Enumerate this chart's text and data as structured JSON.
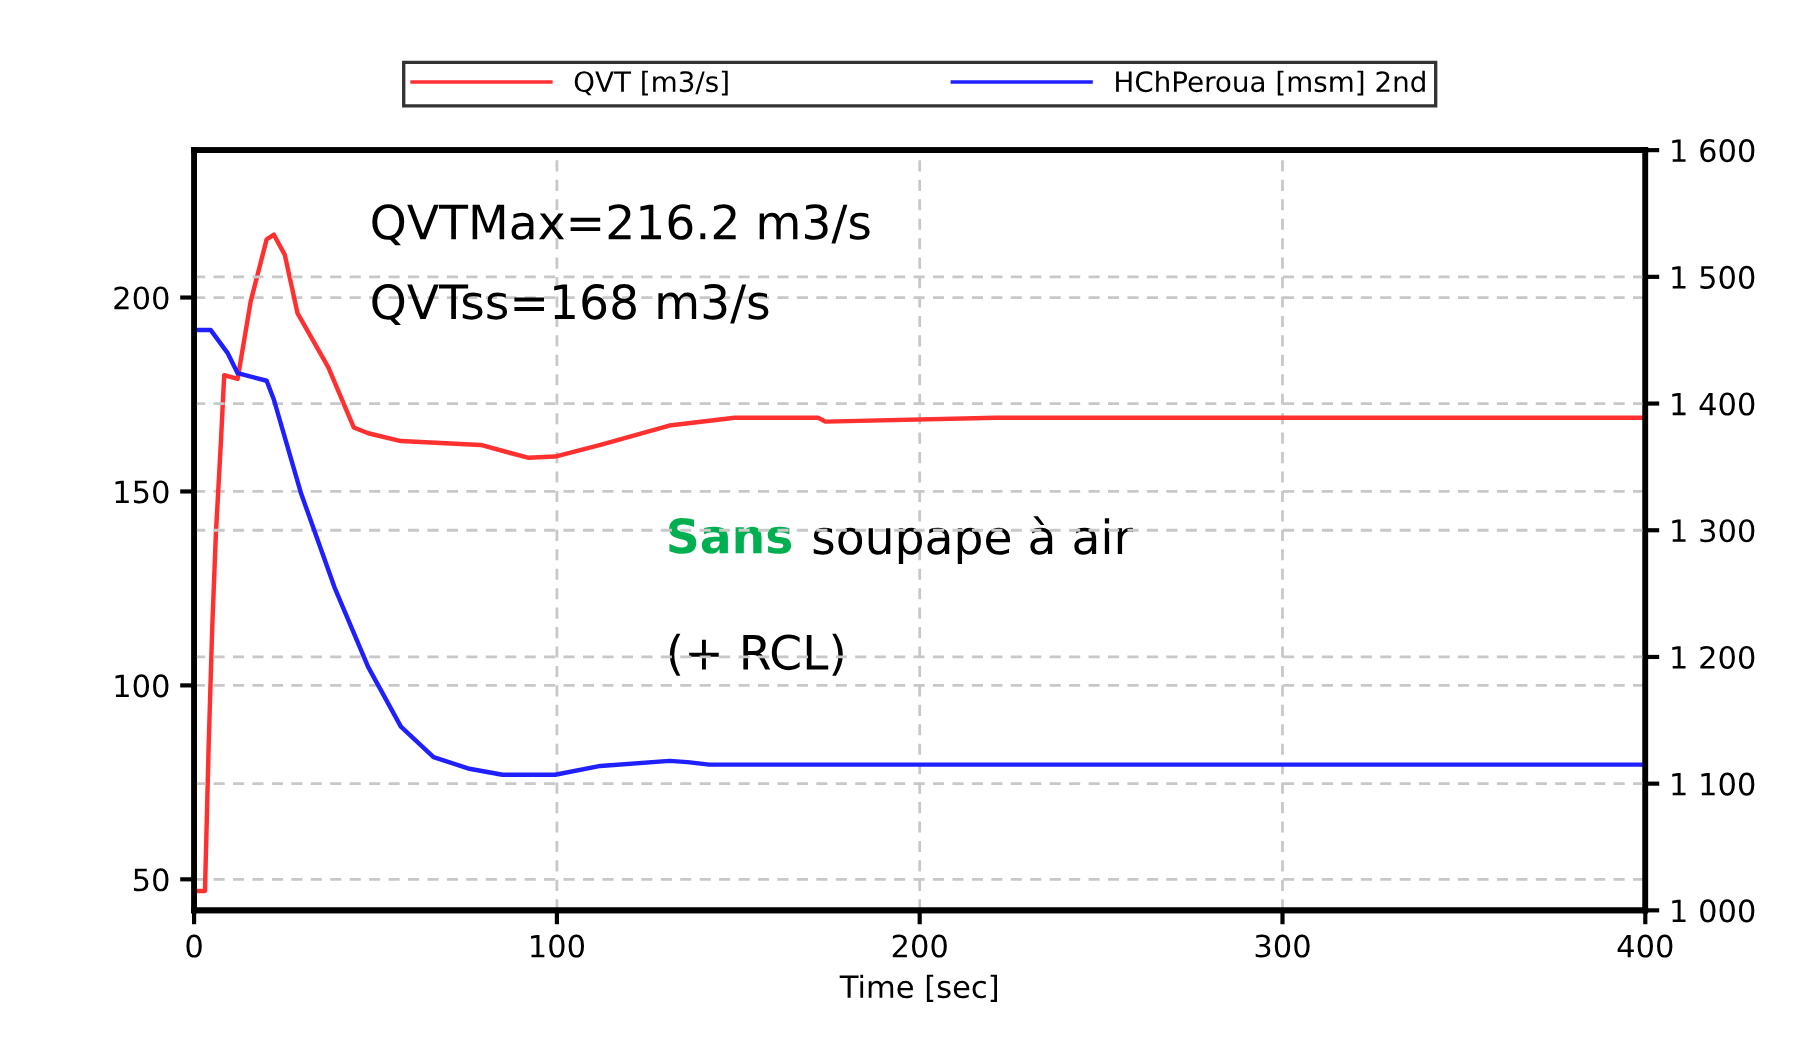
{
  "chart_data": {
    "type": "line",
    "xlabel": "Time [sec]",
    "xlim": [
      0,
      400
    ],
    "xticks": [
      0,
      100,
      200,
      300,
      400
    ],
    "ylim": [
      42,
      238
    ],
    "yticks": [
      50,
      100,
      150,
      200
    ],
    "y2lim": [
      1000,
      1600
    ],
    "y2ticks": [
      {
        "value": 1000,
        "label": "1 000"
      },
      {
        "value": 1100,
        "label": "1 100"
      },
      {
        "value": 1200,
        "label": "1 200"
      },
      {
        "value": 1300,
        "label": "1 300"
      },
      {
        "value": 1400,
        "label": "1 400"
      },
      {
        "value": 1500,
        "label": "1 500"
      },
      {
        "value": 1600,
        "label": "1 600"
      }
    ],
    "grid": true,
    "legend": "top",
    "line_style": "solid",
    "annotations": [
      "QVTMax=216.2 m3/s",
      "QVTss=168 m3/s",
      "Sans soupape à air",
      "(+ RCL)"
    ],
    "series": [
      {
        "name": "QVT [m3/s]",
        "color": "#ff3030",
        "x": [
          0,
          3,
          4,
          5,
          6,
          7.4,
          8.3,
          12,
          15.6,
          20,
          22,
          25,
          28.5,
          37,
          44,
          48,
          57,
          79,
          92,
          99.5,
          112,
          131,
          149,
          172,
          174,
          221,
          400
        ],
        "values": [
          47,
          47,
          84,
          115,
          139,
          163,
          180,
          179,
          199,
          215,
          216.2,
          211,
          196,
          182,
          166.5,
          165,
          163,
          162,
          158.7,
          159,
          162,
          167,
          169,
          169,
          168,
          169,
          169
        ]
      },
      {
        "name": "HChPeroua [msm] 2nd",
        "color": "#2020ff",
        "axis": "y2",
        "x": [
          0,
          4.6,
          9.2,
          12,
          20,
          22,
          29.5,
          38.7,
          48,
          57,
          66,
          75.5,
          85,
          99.5,
          112,
          131,
          136,
          142,
          400
        ],
        "values": [
          1458,
          1458,
          1440,
          1424,
          1418,
          1403,
          1329,
          1255,
          1192,
          1145,
          1121,
          1112,
          1107,
          1107,
          1114,
          1118,
          1117,
          1115,
          1115
        ]
      }
    ]
  }
}
